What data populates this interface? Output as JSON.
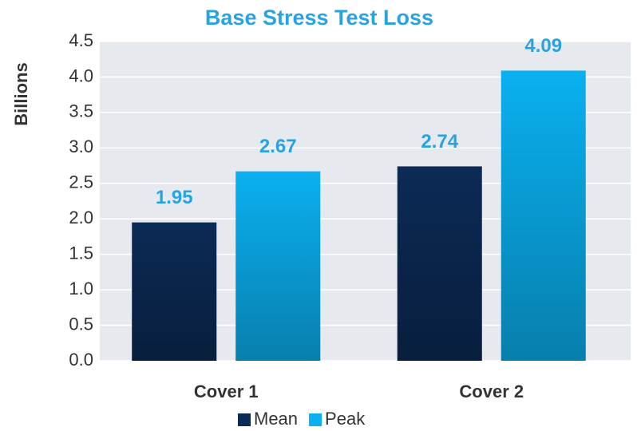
{
  "chart_data": {
    "type": "bar",
    "title": "Base Stress Test Loss",
    "y_label": "Billions",
    "categories": [
      "Cover 1",
      "Cover 2"
    ],
    "series": [
      {
        "name": "Mean",
        "color": "#0b2a55",
        "values": [
          1.95,
          2.74
        ]
      },
      {
        "name": "Peak",
        "color": "#0ab0f0",
        "values": [
          2.67,
          4.09
        ]
      }
    ],
    "ylim": [
      0,
      4.5
    ],
    "yticks": [
      {
        "value": 0,
        "label": "0.0"
      },
      0.5,
      {
        "value": 1,
        "label": "1.0"
      },
      1.5,
      {
        "value": 2,
        "label": "2.0"
      },
      2.5,
      {
        "value": 3,
        "label": "3.0"
      },
      3.5,
      {
        "value": 4,
        "label": "4.0"
      },
      4.5
    ],
    "grid": true,
    "legend": "bottom"
  }
}
